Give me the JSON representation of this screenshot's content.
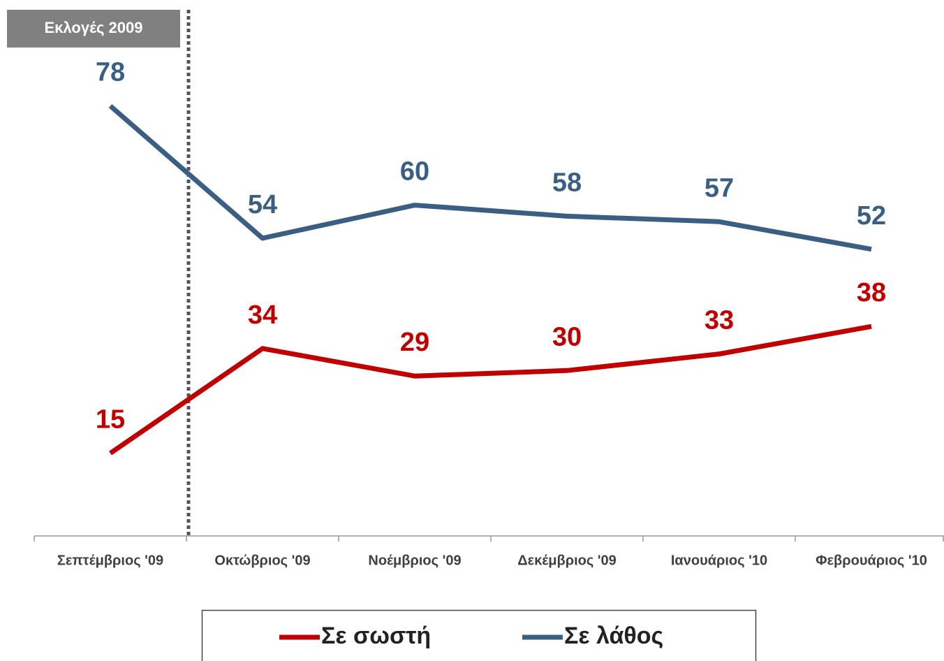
{
  "chart_data": {
    "type": "line",
    "annotation": "Εκλογές 2009",
    "categories": [
      "Σεπτέμβριος '09",
      "Οκτώβριος '09",
      "Νοέμβριος '09",
      "Δεκέμβριος '09",
      "Ιανουάριος '10",
      "Φεβρουάριος '10"
    ],
    "series": [
      {
        "name": "Σε σωστή",
        "color": "#c00000",
        "values": [
          15,
          34,
          29,
          30,
          33,
          38
        ]
      },
      {
        "name": "Σε λάθος",
        "color": "#3b5f82",
        "values": [
          78,
          54,
          60,
          58,
          57,
          52
        ]
      }
    ],
    "ylim": [
      0,
      90
    ]
  }
}
